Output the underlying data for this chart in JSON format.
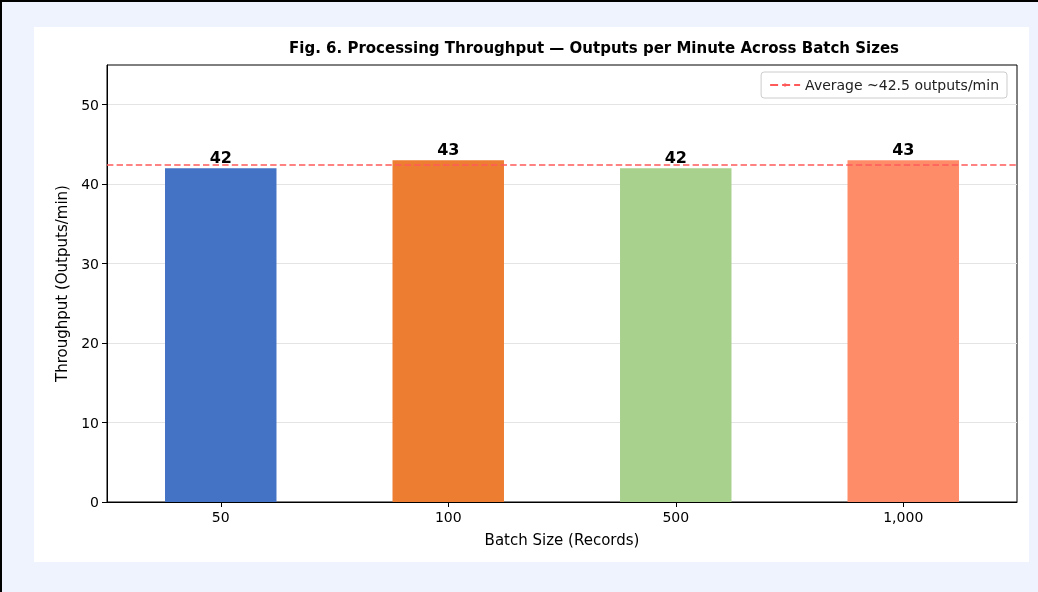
{
  "chart_data": {
    "type": "bar",
    "title": "Fig. 6. Processing Throughput — Outputs per Minute Across Batch Sizes",
    "xlabel": "Batch Size (Records)",
    "ylabel": "Throughput (Outputs/min)",
    "categories": [
      "50",
      "100",
      "500",
      "1,000"
    ],
    "values": [
      42,
      43,
      42,
      43
    ],
    "colors": [
      "#4472c4",
      "#ed7d31",
      "#a9d18e",
      "#ff8c69"
    ],
    "ylim": [
      0,
      55
    ],
    "yticks": [
      0,
      10,
      20,
      30,
      40,
      50
    ],
    "grid": "y",
    "data_labels": true,
    "legend": "top right",
    "ref_lines": [
      {
        "axis": "y",
        "value": 42.5,
        "label": "Average ~42.5 outputs/min",
        "color": "#ff5a5a",
        "line_style": "dashed"
      }
    ]
  }
}
